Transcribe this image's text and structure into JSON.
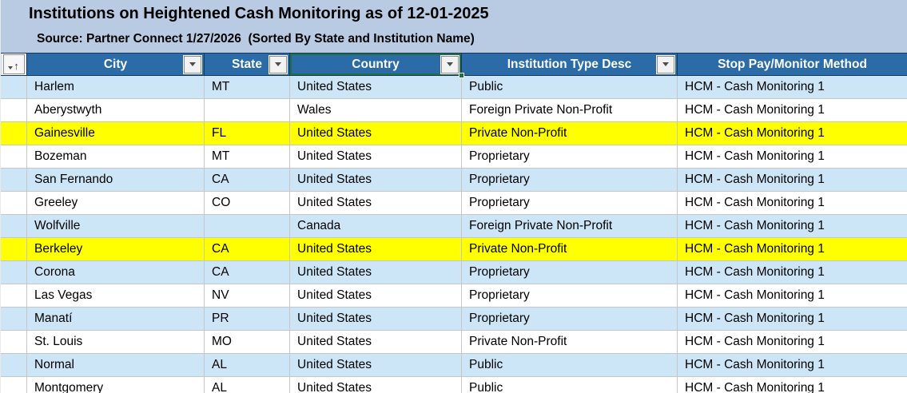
{
  "title": "Institutions on Heightened Cash Monitoring as of 12-01-2025",
  "subtitle": "Source: Partner Connect 1/27/2026  (Sorted By State and Institution Name)",
  "colors": {
    "title_bg": "#b8cbe2",
    "header_bg": "#2b6ca8",
    "header_text": "#ffffff",
    "band_blue": "#cde6f7",
    "band_white": "#ffffff",
    "highlight_yellow": "#ffff00",
    "gridline": "#c6c6c6",
    "selection_green": "#1e7145"
  },
  "icons": {
    "row_filter_button": "sort-ascending-filter-icon",
    "column_filter_button": "chevron-down-icon"
  },
  "columns": [
    {
      "label": "City",
      "has_filter": true,
      "selected": false
    },
    {
      "label": "State",
      "has_filter": true,
      "selected": false
    },
    {
      "label": "Country",
      "has_filter": true,
      "selected": true
    },
    {
      "label": "Institution Type Desc",
      "has_filter": true,
      "selected": false
    },
    {
      "label": "Stop Pay/Monitor Method",
      "has_filter": false,
      "selected": false
    }
  ],
  "rows": [
    {
      "city": "Harlem",
      "state": "MT",
      "country": "United States",
      "institution_type": "Public",
      "stop_pay_method": "HCM - Cash Monitoring 1",
      "band": "blue",
      "highlight": false
    },
    {
      "city": "Aberystwyth",
      "state": "",
      "country": "Wales",
      "institution_type": "Foreign Private Non-Profit",
      "stop_pay_method": "HCM - Cash Monitoring 1",
      "band": "white",
      "highlight": false
    },
    {
      "city": "Gainesville",
      "state": "FL",
      "country": "United States",
      "institution_type": "Private Non-Profit",
      "stop_pay_method": "HCM - Cash Monitoring 1",
      "band": "yellow",
      "highlight": true
    },
    {
      "city": "Bozeman",
      "state": "MT",
      "country": "United States",
      "institution_type": "Proprietary",
      "stop_pay_method": "HCM - Cash Monitoring 1",
      "band": "white",
      "highlight": false
    },
    {
      "city": "San Fernando",
      "state": "CA",
      "country": "United States",
      "institution_type": "Proprietary",
      "stop_pay_method": "HCM - Cash Monitoring 1",
      "band": "blue",
      "highlight": false
    },
    {
      "city": "Greeley",
      "state": "CO",
      "country": "United States",
      "institution_type": "Proprietary",
      "stop_pay_method": "HCM - Cash Monitoring 1",
      "band": "white",
      "highlight": false
    },
    {
      "city": "Wolfville",
      "state": "",
      "country": "Canada",
      "institution_type": "Foreign Private Non-Profit",
      "stop_pay_method": "HCM - Cash Monitoring 1",
      "band": "blue",
      "highlight": false
    },
    {
      "city": "Berkeley",
      "state": "CA",
      "country": "United States",
      "institution_type": "Private Non-Profit",
      "stop_pay_method": "HCM - Cash Monitoring 1",
      "band": "yellow",
      "highlight": true
    },
    {
      "city": "Corona",
      "state": "CA",
      "country": "United States",
      "institution_type": "Proprietary",
      "stop_pay_method": "HCM - Cash Monitoring 1",
      "band": "blue",
      "highlight": false
    },
    {
      "city": "Las Vegas",
      "state": "NV",
      "country": "United States",
      "institution_type": "Proprietary",
      "stop_pay_method": "HCM - Cash Monitoring 1",
      "band": "white",
      "highlight": false
    },
    {
      "city": "Manatí",
      "state": "PR",
      "country": "United States",
      "institution_type": "Proprietary",
      "stop_pay_method": "HCM - Cash Monitoring 1",
      "band": "blue",
      "highlight": false
    },
    {
      "city": "St. Louis",
      "state": "MO",
      "country": "United States",
      "institution_type": "Private Non-Profit",
      "stop_pay_method": "HCM - Cash Monitoring 1",
      "band": "white",
      "highlight": false
    },
    {
      "city": "Normal",
      "state": "AL",
      "country": "United States",
      "institution_type": "Public",
      "stop_pay_method": "HCM - Cash Monitoring 1",
      "band": "blue",
      "highlight": false
    },
    {
      "city": "Montgomery",
      "state": "AL",
      "country": "United States",
      "institution_type": "Public",
      "stop_pay_method": "HCM - Cash Monitoring 1",
      "band": "white",
      "highlight": false
    }
  ]
}
